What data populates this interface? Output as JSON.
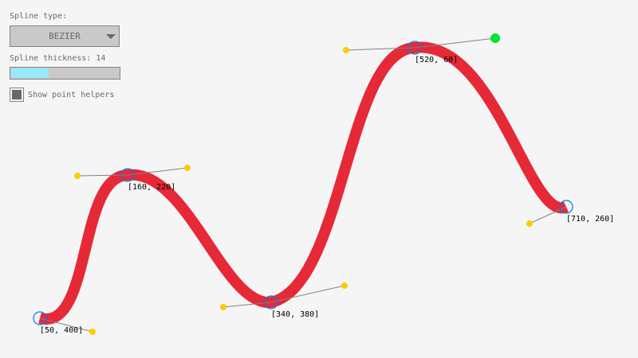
{
  "controls": {
    "spline_type_label": "Spline type:",
    "spline_type_value": "BEZIER",
    "thickness_label": "Spline thickness: 14",
    "thickness_fraction": 0.35,
    "show_helpers_label": "Show point helpers",
    "show_helpers_checked": true
  },
  "points": [
    {
      "label": "[50, 400]"
    },
    {
      "label": "[160, 220]"
    },
    {
      "label": "[340, 380]"
    },
    {
      "label": "[520, 60]"
    },
    {
      "label": "[710, 260]"
    }
  ],
  "colors": {
    "spline": "#e62937",
    "control_point": "#ffcb00",
    "selected_control": "#00e430",
    "point_circle": "#0079f1",
    "helper_line": "#828282"
  }
}
